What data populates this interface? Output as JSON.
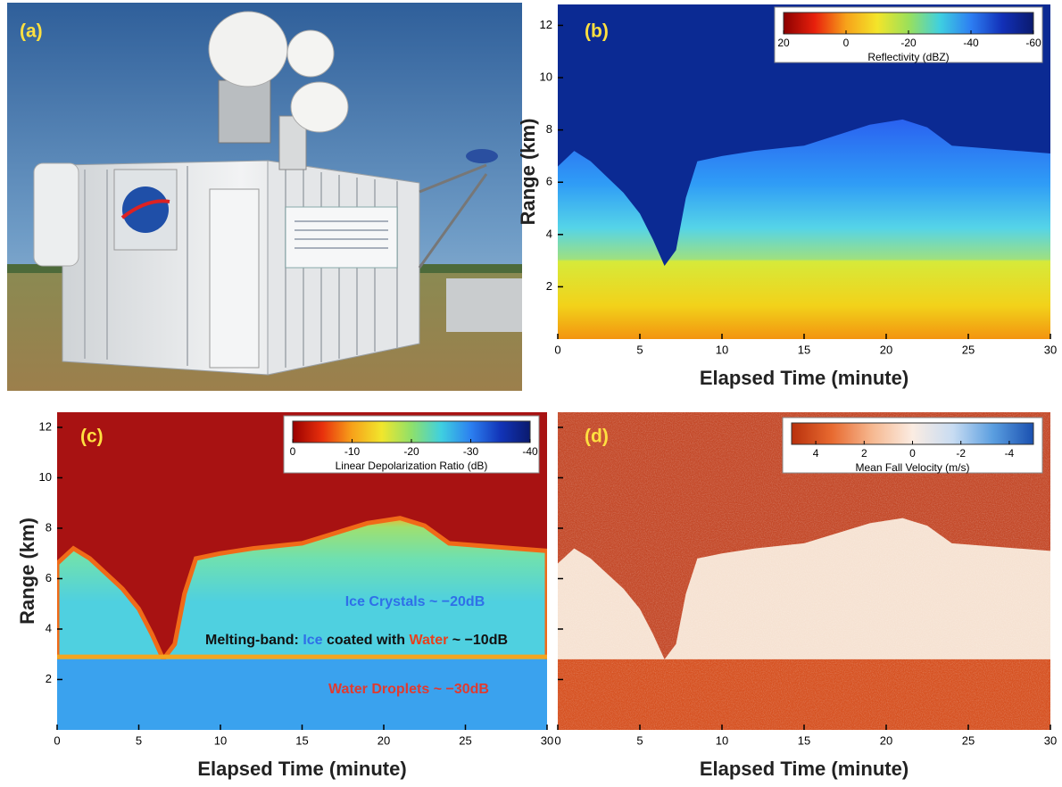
{
  "photo": {
    "label": "(a)"
  },
  "chart_data": [
    {
      "type": "heatmap",
      "panel_label": "(b)",
      "xlabel": "Elapsed Time (minute)",
      "ylabel": "Range (km)",
      "xlim": [
        0,
        30
      ],
      "xticks": [
        0,
        5,
        10,
        15,
        20,
        25,
        30
      ],
      "ylim": [
        0,
        12.8
      ],
      "yticks": [
        2,
        4,
        6,
        8,
        10,
        12
      ],
      "ytick_labels": true,
      "colorbar": {
        "label": "Reflectivity (dBZ)",
        "lim": [
          20,
          -60
        ],
        "ticks": [
          20,
          0,
          -20,
          -40,
          -60
        ],
        "colors": [
          "#8b0000",
          "#e8200c",
          "#f7a21a",
          "#f3e52a",
          "#9be05a",
          "#3fd0e0",
          "#2d7ef2",
          "#1230b8",
          "#0a1a6e"
        ]
      },
      "annotations": []
    },
    {
      "type": "heatmap",
      "panel_label": "(c)",
      "xlabel": "Elapsed Time (minute)",
      "ylabel": "Range (km)",
      "xlim": [
        0,
        30
      ],
      "xticks": [
        0,
        5,
        10,
        15,
        20,
        25,
        30
      ],
      "ylim": [
        0,
        12.6
      ],
      "yticks": [
        2,
        4,
        6,
        8,
        10,
        12
      ],
      "ytick_labels": true,
      "colorbar": {
        "label": "Linear Depolarization Ratio (dB)",
        "lim": [
          0,
          -40
        ],
        "ticks": [
          0,
          -10,
          -20,
          -30,
          -40
        ],
        "colors": [
          "#9a0000",
          "#e8300c",
          "#f7a21a",
          "#f1e62c",
          "#8fe06a",
          "#3fd0e0",
          "#2c80f0",
          "#1234b8",
          "#0a1a6e"
        ]
      },
      "annotations": [
        [
          {
            "text": "Ice Crystals ~ −20dB",
            "color": "#2f6fe8"
          }
        ],
        [
          {
            "text": "Melting-band: ",
            "color": "#111111"
          },
          {
            "text": "Ice",
            "color": "#2f6fe8"
          },
          {
            "text": " coated with ",
            "color": "#111111"
          },
          {
            "text": "Water",
            "color": "#e8401c"
          },
          {
            "text": " ~ −10dB",
            "color": "#111111"
          }
        ],
        [
          {
            "text": "Water Droplets ~ −30dB",
            "color": "#e03a30"
          }
        ]
      ]
    },
    {
      "type": "heatmap",
      "panel_label": "(d)",
      "xlabel": "Elapsed Time (minute)",
      "xlim": [
        0,
        30
      ],
      "xticks": [
        0,
        5,
        10,
        15,
        20,
        25,
        30
      ],
      "ylim": [
        0,
        12.6
      ],
      "yticks": [
        2,
        4,
        6,
        8,
        10,
        12
      ],
      "ytick_labels": false,
      "colorbar": {
        "label": "Mean Fall Velocity (m/s)",
        "lim": [
          5,
          -5
        ],
        "ticks": [
          4,
          2,
          0,
          -2,
          -4
        ],
        "colors": [
          "#b8300c",
          "#e86a30",
          "#f6b890",
          "#fbece2",
          "#c8dcf2",
          "#5a9ee0",
          "#1a50b0"
        ]
      },
      "annotations": []
    }
  ]
}
